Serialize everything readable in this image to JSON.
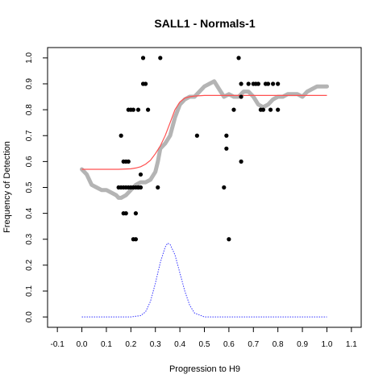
{
  "chart_data": {
    "type": "scatter",
    "title": "SALL1 - Normals-1",
    "xlabel": "Progression to H9",
    "ylabel": "Frequency of Detection",
    "xlim": [
      -0.14,
      1.14
    ],
    "ylim": [
      -0.04,
      1.04
    ],
    "x_ticks": [
      "-0.1",
      "0.0",
      "0.1",
      "0.2",
      "0.3",
      "0.4",
      "0.5",
      "0.6",
      "0.7",
      "0.8",
      "0.9",
      "1.0",
      "1.1"
    ],
    "y_ticks": [
      "0.0",
      "0.1",
      "0.2",
      "0.3",
      "0.4",
      "0.5",
      "0.6",
      "0.7",
      "0.8",
      "0.9",
      "1.0"
    ],
    "grid": false,
    "colors": {
      "observed": "#000000",
      "smoothed": "#b4b4b4",
      "sigmoid_fit": "#ff5050",
      "density": "#3333ff"
    },
    "series": [
      {
        "role": "observed",
        "style": "points",
        "x": [
          0.15,
          0.16,
          0.16,
          0.17,
          0.17,
          0.17,
          0.18,
          0.18,
          0.18,
          0.19,
          0.19,
          0.19,
          0.2,
          0.2,
          0.21,
          0.21,
          0.21,
          0.22,
          0.22,
          0.22,
          0.23,
          0.23,
          0.23,
          0.24,
          0.24,
          0.25,
          0.25,
          0.26,
          0.27,
          0.31,
          0.32,
          0.47,
          0.58,
          0.59,
          0.59,
          0.6,
          0.62,
          0.64,
          0.65,
          0.65,
          0.65,
          0.68,
          0.7,
          0.71,
          0.72,
          0.73,
          0.74,
          0.75,
          0.76,
          0.77,
          0.78,
          0.8,
          0.8
        ],
        "y": [
          0.5,
          0.7,
          0.5,
          0.6,
          0.4,
          0.5,
          0.6,
          0.5,
          0.4,
          0.8,
          0.5,
          0.6,
          0.8,
          0.5,
          0.3,
          0.8,
          0.5,
          0.4,
          0.5,
          0.3,
          0.5,
          0.8,
          0.5,
          0.5,
          0.55,
          1.0,
          0.9,
          0.9,
          0.8,
          0.5,
          1.0,
          0.7,
          0.5,
          0.65,
          0.7,
          0.3,
          0.8,
          1.0,
          0.9,
          0.6,
          0.85,
          0.9,
          0.9,
          0.9,
          0.9,
          0.8,
          0.8,
          0.9,
          0.9,
          0.8,
          0.9,
          0.9,
          0.8
        ]
      },
      {
        "role": "smoothed",
        "style": "thick-line",
        "x": [
          0.0,
          0.02,
          0.04,
          0.06,
          0.08,
          0.1,
          0.12,
          0.14,
          0.15,
          0.16,
          0.18,
          0.2,
          0.22,
          0.24,
          0.26,
          0.28,
          0.3,
          0.31,
          0.32,
          0.34,
          0.36,
          0.38,
          0.4,
          0.42,
          0.44,
          0.46,
          0.48,
          0.5,
          0.52,
          0.54,
          0.56,
          0.58,
          0.6,
          0.62,
          0.64,
          0.66,
          0.68,
          0.7,
          0.72,
          0.74,
          0.76,
          0.78,
          0.8,
          0.82,
          0.84,
          0.86,
          0.88,
          0.9,
          0.92,
          0.94,
          0.96,
          0.98,
          1.0
        ],
        "y": [
          0.57,
          0.55,
          0.51,
          0.5,
          0.49,
          0.49,
          0.48,
          0.47,
          0.46,
          0.46,
          0.47,
          0.49,
          0.51,
          0.52,
          0.52,
          0.53,
          0.56,
          0.6,
          0.65,
          0.67,
          0.7,
          0.77,
          0.82,
          0.84,
          0.85,
          0.85,
          0.87,
          0.89,
          0.9,
          0.91,
          0.88,
          0.85,
          0.86,
          0.85,
          0.85,
          0.87,
          0.87,
          0.85,
          0.82,
          0.81,
          0.82,
          0.84,
          0.85,
          0.85,
          0.86,
          0.86,
          0.86,
          0.85,
          0.87,
          0.88,
          0.89,
          0.89,
          0.89
        ]
      },
      {
        "role": "sigmoid_fit",
        "style": "line",
        "x": [
          0.0,
          0.05,
          0.1,
          0.15,
          0.2,
          0.22,
          0.24,
          0.26,
          0.28,
          0.3,
          0.32,
          0.34,
          0.36,
          0.38,
          0.4,
          0.42,
          0.44,
          0.46,
          0.5,
          0.6,
          0.7,
          0.8,
          0.9,
          1.0
        ],
        "y": [
          0.57,
          0.57,
          0.57,
          0.57,
          0.572,
          0.575,
          0.58,
          0.59,
          0.605,
          0.63,
          0.66,
          0.7,
          0.75,
          0.8,
          0.83,
          0.845,
          0.85,
          0.853,
          0.855,
          0.855,
          0.855,
          0.855,
          0.855,
          0.855
        ]
      },
      {
        "role": "density",
        "style": "dotted-line",
        "x": [
          0.0,
          0.05,
          0.1,
          0.15,
          0.2,
          0.24,
          0.26,
          0.28,
          0.3,
          0.32,
          0.34,
          0.35,
          0.36,
          0.38,
          0.4,
          0.42,
          0.44,
          0.46,
          0.5,
          0.6,
          0.7,
          0.8,
          0.9,
          1.0
        ],
        "y": [
          0.0,
          0.0,
          0.0,
          0.0,
          0.0,
          0.005,
          0.02,
          0.06,
          0.13,
          0.21,
          0.27,
          0.285,
          0.28,
          0.24,
          0.17,
          0.1,
          0.045,
          0.015,
          0.0,
          0.0,
          0.0,
          0.0,
          0.0,
          0.0
        ]
      }
    ]
  }
}
